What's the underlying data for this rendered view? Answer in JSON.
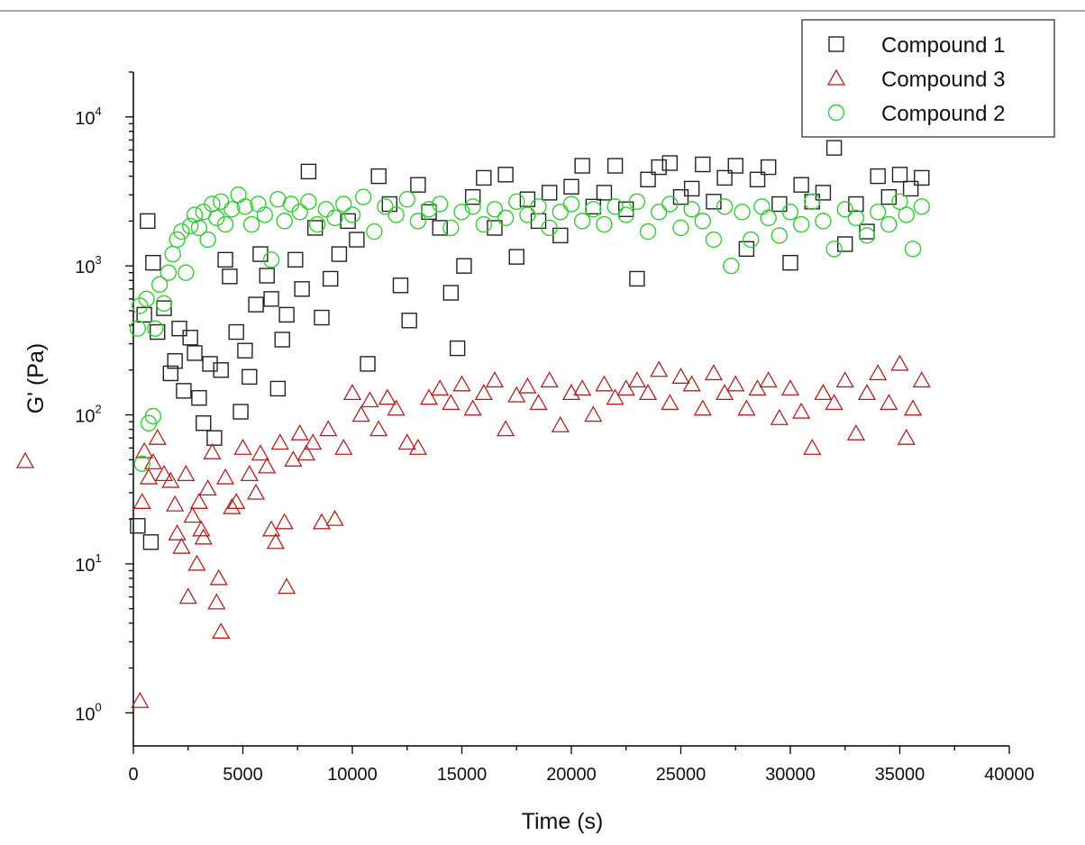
{
  "chart_data": {
    "type": "scatter",
    "title": "",
    "xlabel": "Time (s)",
    "ylabel": "G' (Pa)",
    "ylabel_marker_series": 1,
    "xlim": [
      0,
      40000
    ],
    "ylim": [
      0.6,
      20000
    ],
    "yscale": "log",
    "x_ticks": [
      0,
      5000,
      10000,
      15000,
      20000,
      25000,
      30000,
      35000,
      40000
    ],
    "y_ticks": [
      {
        "value": 1,
        "base": "10",
        "exp": "0"
      },
      {
        "value": 10,
        "base": "10",
        "exp": "1"
      },
      {
        "value": 100,
        "base": "10",
        "exp": "2"
      },
      {
        "value": 1000,
        "base": "10",
        "exp": "3"
      },
      {
        "value": 10000,
        "base": "10",
        "exp": "4"
      }
    ],
    "legend_position": "top-right",
    "series": [
      {
        "name": "Compound 1",
        "marker": "square",
        "color": "#222222",
        "points": [
          [
            200,
            18
          ],
          [
            500,
            470
          ],
          [
            650,
            2000
          ],
          [
            800,
            14
          ],
          [
            900,
            1050
          ],
          [
            1100,
            360
          ],
          [
            1400,
            520
          ],
          [
            1700,
            190
          ],
          [
            1900,
            230
          ],
          [
            2100,
            380
          ],
          [
            2300,
            145
          ],
          [
            2600,
            330
          ],
          [
            2800,
            260
          ],
          [
            3000,
            130
          ],
          [
            3200,
            88
          ],
          [
            3500,
            220
          ],
          [
            3700,
            70
          ],
          [
            4000,
            200
          ],
          [
            4200,
            1100
          ],
          [
            4400,
            850
          ],
          [
            4700,
            360
          ],
          [
            4900,
            105
          ],
          [
            5100,
            270
          ],
          [
            5300,
            180
          ],
          [
            5600,
            550
          ],
          [
            5800,
            1200
          ],
          [
            6100,
            860
          ],
          [
            6300,
            600
          ],
          [
            6600,
            150
          ],
          [
            6800,
            320
          ],
          [
            7000,
            470
          ],
          [
            7400,
            1100
          ],
          [
            7700,
            700
          ],
          [
            8000,
            4300
          ],
          [
            8300,
            1800
          ],
          [
            8600,
            450
          ],
          [
            9000,
            820
          ],
          [
            9400,
            1200
          ],
          [
            9800,
            2000
          ],
          [
            10200,
            1500
          ],
          [
            10700,
            220
          ],
          [
            11200,
            4000
          ],
          [
            11700,
            2600
          ],
          [
            12200,
            740
          ],
          [
            12600,
            430
          ],
          [
            13000,
            3500
          ],
          [
            13500,
            2300
          ],
          [
            14000,
            1800
          ],
          [
            14500,
            660
          ],
          [
            14800,
            280
          ],
          [
            15100,
            1000
          ],
          [
            15500,
            2900
          ],
          [
            16000,
            3900
          ],
          [
            16500,
            1800
          ],
          [
            17000,
            4100
          ],
          [
            17500,
            1150
          ],
          [
            18000,
            2800
          ],
          [
            18500,
            2000
          ],
          [
            19000,
            3100
          ],
          [
            19500,
            1600
          ],
          [
            20000,
            3400
          ],
          [
            20500,
            4700
          ],
          [
            21000,
            2500
          ],
          [
            21500,
            3100
          ],
          [
            22000,
            4700
          ],
          [
            22500,
            2400
          ],
          [
            23000,
            820
          ],
          [
            23500,
            3800
          ],
          [
            24000,
            4600
          ],
          [
            24500,
            4900
          ],
          [
            25000,
            2900
          ],
          [
            25500,
            3300
          ],
          [
            26000,
            4800
          ],
          [
            26500,
            2700
          ],
          [
            27000,
            3900
          ],
          [
            27500,
            4700
          ],
          [
            28000,
            1300
          ],
          [
            28500,
            3800
          ],
          [
            29000,
            4600
          ],
          [
            29500,
            2600
          ],
          [
            30000,
            1050
          ],
          [
            30500,
            3500
          ],
          [
            31000,
            2700
          ],
          [
            31500,
            3100
          ],
          [
            32000,
            6200
          ],
          [
            32500,
            1400
          ],
          [
            33000,
            2600
          ],
          [
            33500,
            1700
          ],
          [
            34000,
            4000
          ],
          [
            34500,
            2900
          ],
          [
            35000,
            4100
          ],
          [
            35500,
            3300
          ],
          [
            36000,
            3900
          ]
        ]
      },
      {
        "name": "Compound 3",
        "marker": "triangle",
        "color": "#b22222",
        "points": [
          [
            300,
            1.2
          ],
          [
            400,
            26
          ],
          [
            500,
            57
          ],
          [
            700,
            38
          ],
          [
            900,
            48
          ],
          [
            1100,
            70
          ],
          [
            1400,
            40
          ],
          [
            1700,
            36
          ],
          [
            1900,
            25
          ],
          [
            2000,
            16
          ],
          [
            2200,
            13
          ],
          [
            2400,
            40
          ],
          [
            2500,
            6
          ],
          [
            2700,
            21
          ],
          [
            2900,
            10
          ],
          [
            3000,
            26
          ],
          [
            3100,
            17
          ],
          [
            3200,
            15
          ],
          [
            3400,
            32
          ],
          [
            3600,
            56
          ],
          [
            3800,
            5.5
          ],
          [
            3900,
            8
          ],
          [
            4000,
            3.5
          ],
          [
            4200,
            38
          ],
          [
            4500,
            24
          ],
          [
            4700,
            26
          ],
          [
            5000,
            60
          ],
          [
            5300,
            40
          ],
          [
            5600,
            30
          ],
          [
            5800,
            55
          ],
          [
            6100,
            45
          ],
          [
            6300,
            17
          ],
          [
            6500,
            14
          ],
          [
            6700,
            65
          ],
          [
            6900,
            19
          ],
          [
            7000,
            7
          ],
          [
            7300,
            50
          ],
          [
            7600,
            75
          ],
          [
            7900,
            55
          ],
          [
            8200,
            65
          ],
          [
            8600,
            19
          ],
          [
            8900,
            80
          ],
          [
            9200,
            20
          ],
          [
            9600,
            60
          ],
          [
            10000,
            140
          ],
          [
            10400,
            100
          ],
          [
            10800,
            125
          ],
          [
            11200,
            80
          ],
          [
            11600,
            130
          ],
          [
            12000,
            110
          ],
          [
            12500,
            65
          ],
          [
            13000,
            60
          ],
          [
            13500,
            130
          ],
          [
            14000,
            150
          ],
          [
            14500,
            120
          ],
          [
            15000,
            160
          ],
          [
            15500,
            110
          ],
          [
            16000,
            140
          ],
          [
            16500,
            170
          ],
          [
            17000,
            80
          ],
          [
            17500,
            135
          ],
          [
            18000,
            155
          ],
          [
            18500,
            120
          ],
          [
            19000,
            170
          ],
          [
            19500,
            85
          ],
          [
            20000,
            140
          ],
          [
            20500,
            150
          ],
          [
            21000,
            100
          ],
          [
            21500,
            160
          ],
          [
            22000,
            130
          ],
          [
            22500,
            150
          ],
          [
            23000,
            170
          ],
          [
            23500,
            140
          ],
          [
            24000,
            200
          ],
          [
            24500,
            120
          ],
          [
            25000,
            180
          ],
          [
            25500,
            160
          ],
          [
            26000,
            110
          ],
          [
            26500,
            190
          ],
          [
            27000,
            140
          ],
          [
            27500,
            160
          ],
          [
            28000,
            110
          ],
          [
            28500,
            150
          ],
          [
            29000,
            170
          ],
          [
            29500,
            95
          ],
          [
            30000,
            150
          ],
          [
            30500,
            105
          ],
          [
            31000,
            60
          ],
          [
            31500,
            140
          ],
          [
            32000,
            120
          ],
          [
            32500,
            170
          ],
          [
            33000,
            75
          ],
          [
            33500,
            140
          ],
          [
            34000,
            190
          ],
          [
            34500,
            120
          ],
          [
            35000,
            220
          ],
          [
            35300,
            70
          ],
          [
            35600,
            110
          ],
          [
            36000,
            170
          ]
        ]
      },
      {
        "name": "Compound 2",
        "marker": "circle",
        "color": "#33cc33",
        "points": [
          [
            200,
            380
          ],
          [
            300,
            540
          ],
          [
            400,
            47
          ],
          [
            600,
            600
          ],
          [
            700,
            88
          ],
          [
            900,
            98
          ],
          [
            1000,
            380
          ],
          [
            1200,
            750
          ],
          [
            1400,
            560
          ],
          [
            1600,
            900
          ],
          [
            1800,
            1200
          ],
          [
            2000,
            1500
          ],
          [
            2200,
            1700
          ],
          [
            2400,
            900
          ],
          [
            2600,
            1850
          ],
          [
            2800,
            2200
          ],
          [
            3000,
            1800
          ],
          [
            3200,
            2300
          ],
          [
            3400,
            1500
          ],
          [
            3600,
            2600
          ],
          [
            3800,
            2100
          ],
          [
            4000,
            2700
          ],
          [
            4200,
            1900
          ],
          [
            4500,
            2400
          ],
          [
            4800,
            3000
          ],
          [
            5100,
            2500
          ],
          [
            5400,
            1900
          ],
          [
            5700,
            2600
          ],
          [
            6000,
            2200
          ],
          [
            6300,
            1100
          ],
          [
            6600,
            2800
          ],
          [
            6900,
            2000
          ],
          [
            7200,
            2600
          ],
          [
            7600,
            2300
          ],
          [
            8000,
            2700
          ],
          [
            8400,
            1900
          ],
          [
            8800,
            2400
          ],
          [
            9200,
            2100
          ],
          [
            9600,
            2600
          ],
          [
            10000,
            2200
          ],
          [
            10500,
            2900
          ],
          [
            11000,
            1700
          ],
          [
            11500,
            2500
          ],
          [
            12000,
            2200
          ],
          [
            12500,
            2800
          ],
          [
            13000,
            2000
          ],
          [
            13500,
            2400
          ],
          [
            14000,
            2600
          ],
          [
            14500,
            1800
          ],
          [
            15000,
            2300
          ],
          [
            15500,
            2500
          ],
          [
            16000,
            1900
          ],
          [
            16500,
            2400
          ],
          [
            17000,
            2100
          ],
          [
            17500,
            2700
          ],
          [
            18000,
            2200
          ],
          [
            18500,
            2500
          ],
          [
            19000,
            1800
          ],
          [
            19500,
            2300
          ],
          [
            20000,
            2600
          ],
          [
            20500,
            2000
          ],
          [
            21000,
            2400
          ],
          [
            21500,
            1900
          ],
          [
            22000,
            2500
          ],
          [
            22500,
            2200
          ],
          [
            23000,
            2700
          ],
          [
            23500,
            1700
          ],
          [
            24000,
            2300
          ],
          [
            24500,
            2600
          ],
          [
            25000,
            1800
          ],
          [
            25500,
            2400
          ],
          [
            26000,
            2000
          ],
          [
            26500,
            1500
          ],
          [
            27000,
            2500
          ],
          [
            27300,
            1000
          ],
          [
            27800,
            2300
          ],
          [
            28200,
            1500
          ],
          [
            28700,
            2500
          ],
          [
            29000,
            2100
          ],
          [
            29500,
            1600
          ],
          [
            30000,
            2300
          ],
          [
            30500,
            1900
          ],
          [
            31000,
            2700
          ],
          [
            31500,
            2000
          ],
          [
            32000,
            1300
          ],
          [
            32500,
            2400
          ],
          [
            33000,
            2100
          ],
          [
            33500,
            1600
          ],
          [
            34000,
            2300
          ],
          [
            34500,
            1900
          ],
          [
            35000,
            2700
          ],
          [
            35300,
            2200
          ],
          [
            35600,
            1300
          ],
          [
            36000,
            2500
          ]
        ]
      }
    ]
  }
}
